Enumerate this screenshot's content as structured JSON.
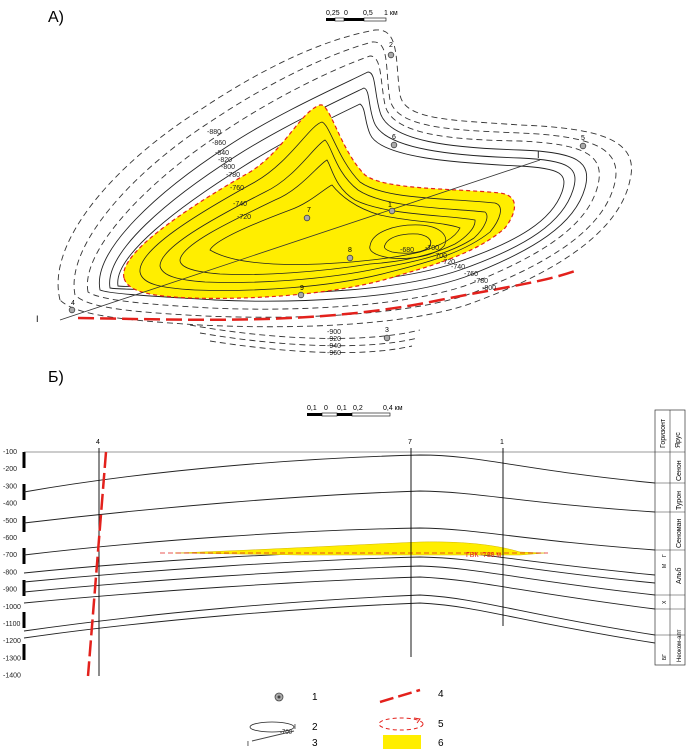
{
  "panel_a": {
    "label": "А)",
    "scale": {
      "ticks": [
        "0,25",
        "0",
        "0,5",
        "1 км"
      ]
    },
    "contour_labels": [
      "-880",
      "-860",
      "-840",
      "-820",
      "-800",
      "-780",
      "-760",
      "-740",
      "-720",
      "-700",
      "-680",
      "-700",
      "-720",
      "-740",
      "-760",
      "-780",
      "-800",
      "-900",
      "-920",
      "-940",
      "-960"
    ],
    "wells": [
      "2",
      "6",
      "5",
      "7",
      "1",
      "8",
      "9",
      "4",
      "3"
    ],
    "section_line": {
      "start": "I",
      "end": "I"
    }
  },
  "panel_b": {
    "label": "Б)",
    "scale": {
      "ticks": [
        "0,1",
        "0",
        "0,1",
        "0,2",
        "0,4 км"
      ]
    },
    "depth_labels": [
      "-100",
      "-200",
      "-300",
      "-400",
      "-500",
      "-600",
      "-700",
      "-800",
      "-900",
      "-1000",
      "-1100",
      "-1200",
      "-1300",
      "-1400"
    ],
    "wells": [
      "4",
      "7",
      "1"
    ],
    "gwc_label": "ГВК -788 м",
    "column_header_horizon": "Горизонт",
    "column_header_stage": "Ярус",
    "stratigraphy": [
      "Сенон",
      "Турон",
      "Сеноман",
      "Альб",
      "Неоком-апт"
    ],
    "horizons": [
      "Г",
      "М",
      "Х",
      "БГ"
    ]
  },
  "legend": {
    "items": [
      "1",
      "2",
      "3",
      "4",
      "5",
      "6"
    ],
    "contour_sample": "-700",
    "section_sample_start": "I",
    "section_sample_end": "I"
  },
  "colors": {
    "deposit": "#ffee00",
    "fault": "#e3211c",
    "contour": "#222222",
    "dashed": "#333333"
  }
}
